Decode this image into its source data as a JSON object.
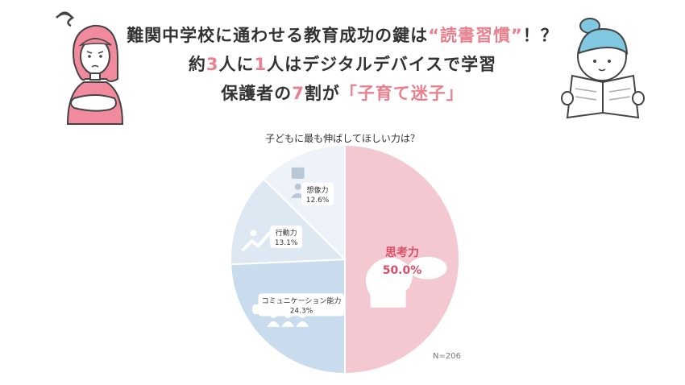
{
  "headline": {
    "line1_pre": "難関中学校に通わせる教育成功の鍵は",
    "line1_accent": "“読書習慣”",
    "line1_post": "！？",
    "line2_a": "約",
    "line2_b": "3",
    "line2_c": "人に",
    "line2_d": "1",
    "line2_e": "人はデジタルデバイスで学習",
    "line3_a": "保護者の",
    "line3_b": "7",
    "line3_c": "割が",
    "line3_d": "「子育て迷子」"
  },
  "chart_data": {
    "type": "pie",
    "title": "子どもに最も伸ばしてほしい力は？",
    "note": "N=206",
    "slices": [
      {
        "label": "思考力",
        "value": 50.0,
        "value_label": "50.0%",
        "color": "#f4c8d0",
        "icon": "brain-icon"
      },
      {
        "label": "コミュニケーション能力",
        "value": 24.3,
        "value_label": "24.3%",
        "color": "#c9dcee",
        "icon": "people-chat-icon"
      },
      {
        "label": "行動力",
        "value": 13.1,
        "value_label": "13.1%",
        "color": "#dde8f3",
        "icon": "climbing-icon"
      },
      {
        "label": "想像力",
        "value": 12.6,
        "value_label": "12.6%",
        "color": "#eef3f9",
        "icon": "idea-icon"
      }
    ]
  },
  "colors": {
    "accent": "#e8808e",
    "text": "#333333"
  }
}
